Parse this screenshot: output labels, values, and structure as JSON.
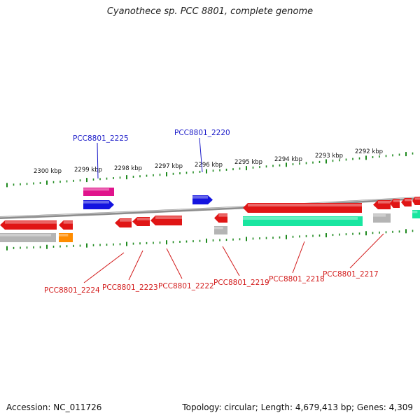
{
  "title": "Cyanothece sp. PCC 8801, complete genome",
  "footer": {
    "accession": "Accession: NC_011726",
    "summary": "Topology: circular; Length: 4,679,413 bp; Genes: 4,309"
  },
  "colors": {
    "backbone": "#8c8c8c",
    "ticks": "#1f8a1f",
    "forward_label": "#1a1ac8",
    "reverse_label": "#d21a1a",
    "cds_red": "#e01515",
    "cds_blue": "#1414e0",
    "cds_magenta": "#e0148c",
    "cds_green": "#19e6a0",
    "cds_gray": "#b4b4b4",
    "cds_orange": "#ff8c00"
  },
  "scale": {
    "unit": "kbp",
    "ticks": [
      "2300 kbp",
      "2299 kbp",
      "2298 kbp",
      "2297 kbp",
      "2296 kbp",
      "2295 kbp",
      "2294 kbp",
      "2293 kbp",
      "2292 kbp"
    ]
  },
  "forward_labels": [
    "PCC8801_2225",
    "PCC8801_2220"
  ],
  "reverse_labels": [
    "PCC8801_2224",
    "PCC8801_2223",
    "PCC8801_2222",
    "PCC8801_2219",
    "PCC8801_2218",
    "PCC8801_2217"
  ]
}
